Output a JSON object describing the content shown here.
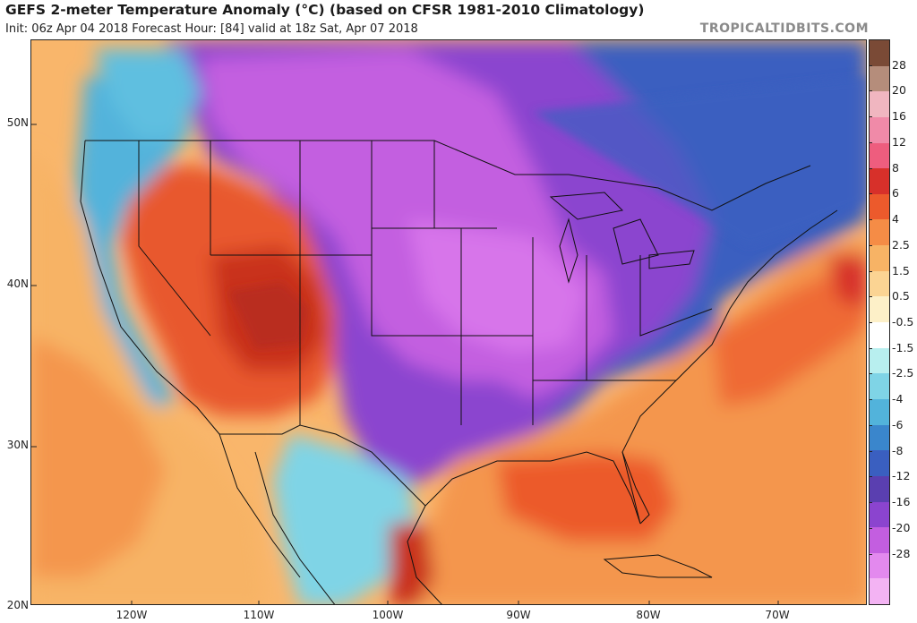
{
  "header": {
    "title": "GEFS 2-meter Temperature Anomaly (°C) (based on CFSR 1981-2010 Climatology)",
    "subtitle": "Init: 06z Apr 04 2018   Forecast Hour: [84]   valid at 18z Sat, Apr 07 2018",
    "brand": "TROPICALTIDBITS.COM"
  },
  "map": {
    "lat_labels": [
      "50N",
      "40N",
      "30N",
      "20N"
    ],
    "lon_labels": [
      "120W",
      "110W",
      "100W",
      "90W",
      "80W",
      "70W"
    ]
  },
  "colorbar": {
    "labels": [
      "28",
      "20",
      "16",
      "12",
      "8",
      "6",
      "4",
      "2.5",
      "1.5",
      "0.5",
      "-0.5",
      "-1.5",
      "-2.5",
      "-4",
      "-6",
      "-8",
      "-12",
      "-16",
      "-20",
      "-28"
    ],
    "colors": [
      "#7a4a36",
      "#b58d7b",
      "#f0b6c0",
      "#f08aa8",
      "#ee5d7e",
      "#d7302a",
      "#ec5a2c",
      "#f58c46",
      "#f7b365",
      "#fbd493",
      "#fdf0c8",
      "#ffffff",
      "#b8efef",
      "#7fd4e6",
      "#52b3db",
      "#3a86cc",
      "#3a5fc0",
      "#5a3fb0",
      "#8b44cf",
      "#c35ee0",
      "#e389ee",
      "#f3b3f3"
    ]
  }
}
